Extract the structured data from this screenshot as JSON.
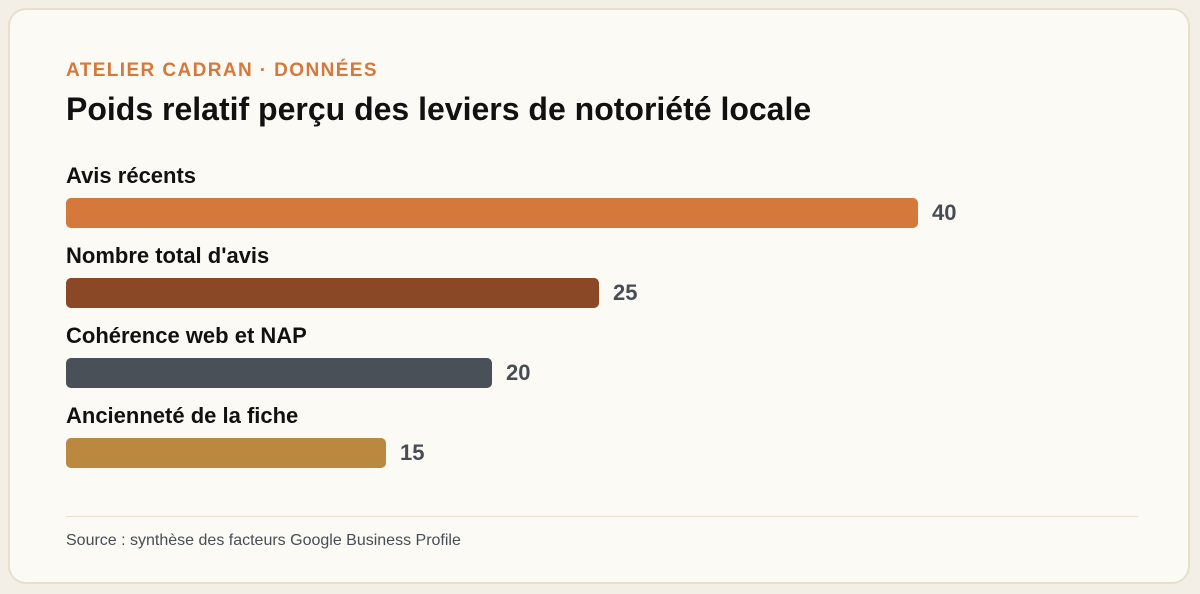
{
  "header": {
    "eyebrow": "ATELIER CADRAN · DONNÉES",
    "title": "Poids relatif perçu des leviers de notoriété locale"
  },
  "footer": {
    "source": "Source : synthèse des facteurs Google Business Profile"
  },
  "chart_data": {
    "type": "bar",
    "orientation": "horizontal",
    "title": "Poids relatif perçu des leviers de notoriété locale",
    "categories": [
      "Avis récents",
      "Nombre total d'avis",
      "Cohérence web et NAP",
      "Ancienneté de la fiche"
    ],
    "values": [
      40,
      25,
      20,
      15
    ],
    "value_labels": [
      "40",
      "25",
      "20",
      "15"
    ],
    "colors": [
      "#d4783b",
      "#8b4826",
      "#4a5057",
      "#bb8840"
    ],
    "xlim": [
      0,
      40
    ],
    "grid": false,
    "legend": "none"
  }
}
